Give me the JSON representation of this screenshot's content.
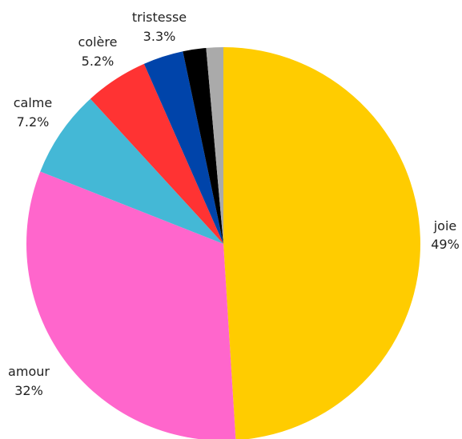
{
  "chart_data": {
    "type": "pie",
    "start": "top",
    "direction": "clockwise",
    "slices": [
      {
        "name": "joie",
        "value": 49.0,
        "pct_label": "49%",
        "color": "#FFCC00",
        "labeled": true
      },
      {
        "name": "amour",
        "value": 32.0,
        "pct_label": "32%",
        "color": "#FF66CC",
        "labeled": true
      },
      {
        "name": "calme",
        "value": 7.2,
        "pct_label": "7.2%",
        "color": "#44B8D6",
        "labeled": true
      },
      {
        "name": "colère",
        "value": 5.2,
        "pct_label": "5.2%",
        "color": "#FF3333",
        "labeled": true
      },
      {
        "name": "tristesse",
        "value": 3.3,
        "pct_label": "3.3%",
        "color": "#0044AA",
        "labeled": true
      },
      {
        "name": "",
        "value": 1.9,
        "pct_label": "",
        "color": "#000000",
        "labeled": false
      },
      {
        "name": "",
        "value": 1.4,
        "pct_label": "",
        "color": "#AAAAAA",
        "labeled": false
      }
    ]
  }
}
